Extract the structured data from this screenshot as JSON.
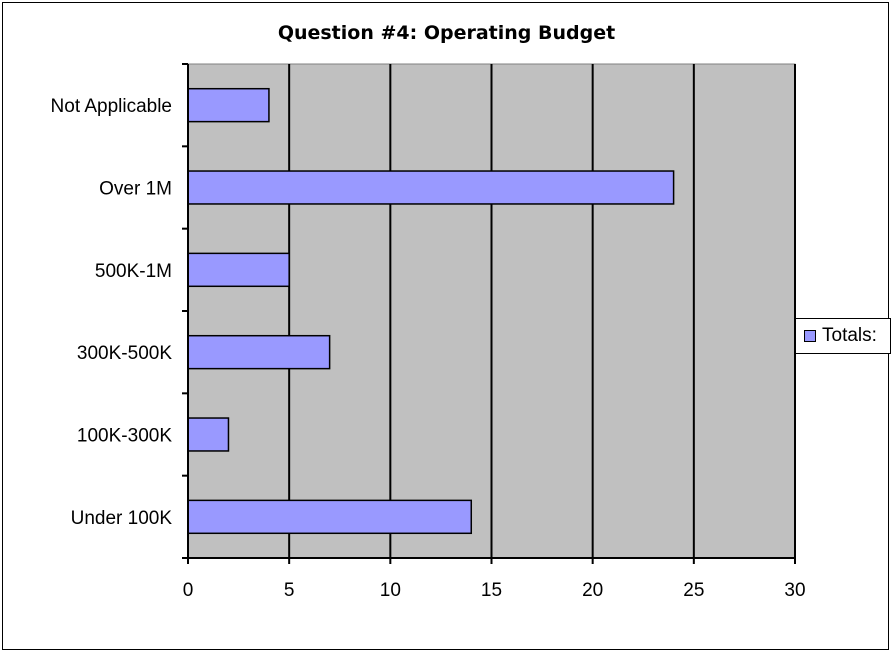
{
  "chart_data": {
    "type": "bar",
    "orientation": "horizontal",
    "title": "Question #4: Operating Budget",
    "categories": [
      "Not Applicable",
      "Over 1M",
      "500K-1M",
      "300K-500K",
      "100K-300K",
      "Under 100K"
    ],
    "series": [
      {
        "name": "Totals:",
        "values": [
          4,
          24,
          5,
          7,
          2,
          14
        ]
      }
    ],
    "xlim": [
      0,
      30
    ],
    "xticks": [
      0,
      5,
      10,
      15,
      20,
      25,
      30
    ],
    "grid": true,
    "legend_position": "right",
    "colors": {
      "bar_fill": "#9999ff",
      "plot_background": "#c0c0c0",
      "gridline": "#000000"
    }
  }
}
